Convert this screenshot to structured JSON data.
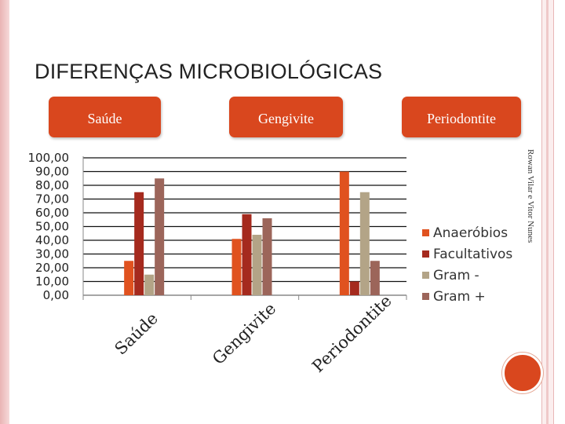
{
  "slide": {
    "title": "DIFERENÇAS MICROBIOLÓGICAS",
    "pills": [
      "Saúde",
      "Gengivite",
      "Periodontite"
    ],
    "credit": "Rowan Vilar e Vitor Nunes"
  },
  "colors": {
    "accent": "#d9471e",
    "series": [
      "#e0521f",
      "#a52a1e",
      "#b3a487",
      "#9c655a"
    ]
  },
  "chart_data": {
    "type": "bar",
    "categories": [
      "Saúde",
      "Gengivite",
      "Periodontite"
    ],
    "series": [
      {
        "name": "Anaeróbios",
        "values": [
          25,
          41,
          90
        ]
      },
      {
        "name": "Facultativos",
        "values": [
          75,
          59,
          10
        ]
      },
      {
        "name": "Gram -",
        "values": [
          15,
          44,
          75
        ]
      },
      {
        "name": "Gram +",
        "values": [
          85,
          56,
          25
        ]
      }
    ],
    "yticks": [
      "0,00",
      "10,00",
      "20,00",
      "30,00",
      "40,00",
      "50,00",
      "60,00",
      "70,00",
      "80,00",
      "90,00",
      "100,00"
    ],
    "ylim": [
      0,
      100
    ],
    "legend": "right",
    "grid": true
  }
}
